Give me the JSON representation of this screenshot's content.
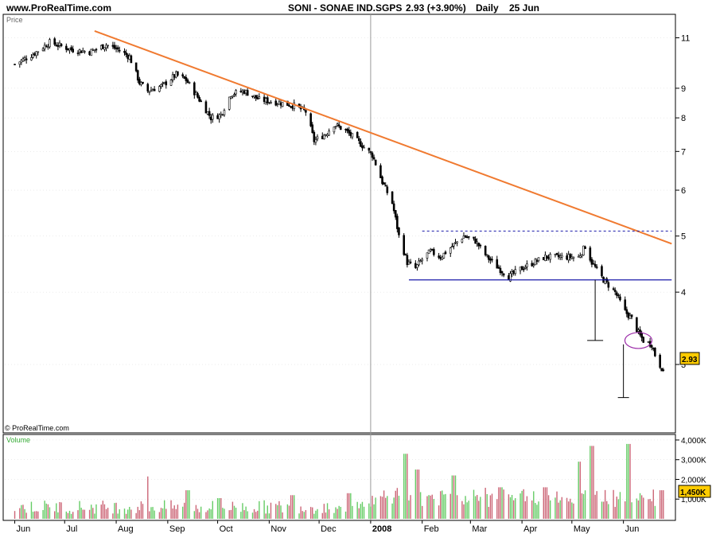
{
  "header": {
    "site": "www.ProRealTime.com",
    "symbol": "SONI - SONAE IND.SGPS",
    "quote": "2.93 (+3.90%)",
    "period": "Daily",
    "date": "25 Jun"
  },
  "price_panel": {
    "title": "Price",
    "copyright": "© ProRealTime.com",
    "last_tag": "2.93"
  },
  "volume_panel": {
    "title": "Volume",
    "last_tag": "1,450K"
  },
  "colors": {
    "candle": "#000000",
    "trendline": "#f07a30",
    "support": "#1a1aaa",
    "resistance": "#1a1aaa",
    "ellipse": "#9b2aa8",
    "vol_up": "#66cc66",
    "vol_down": "#cc6677",
    "tag_bg": "#ffcc00",
    "grid": "#d8d8d8",
    "year_divider": "#999999"
  },
  "chart_data": [
    {
      "type": "line",
      "subtype": "candlestick",
      "name_text": "SONI - SONAE IND.SGPS",
      "y_scale": "log",
      "ylim": [
        2.3,
        12.0
      ],
      "y_ticks": [
        11,
        9,
        8,
        7,
        6,
        5,
        4,
        3
      ],
      "y_tick_labels": [
        "11",
        "9",
        "8",
        "7",
        "6",
        "5",
        "4",
        "3"
      ],
      "x_ticks": [
        "Jun",
        "Jul",
        "Aug",
        "Sep",
        "Oct",
        "Nov",
        "Dec",
        "2008",
        "Feb",
        "Mar",
        "Apr",
        "May",
        "Jun"
      ],
      "last": 2.93,
      "close_path": [
        [
          "2007-06-01",
          9.9
        ],
        [
          "2007-06-12",
          10.3
        ],
        [
          "2007-06-22",
          10.8
        ],
        [
          "2007-07-05",
          10.5
        ],
        [
          "2007-07-16",
          10.4
        ],
        [
          "2007-07-26",
          10.7
        ],
        [
          "2007-08-02",
          10.5
        ],
        [
          "2007-08-09",
          10.2
        ],
        [
          "2007-08-15",
          9.2
        ],
        [
          "2007-08-20",
          8.9
        ],
        [
          "2007-08-29",
          9.1
        ],
        [
          "2007-09-06",
          9.5
        ],
        [
          "2007-09-12",
          9.3
        ],
        [
          "2007-09-20",
          8.6
        ],
        [
          "2007-09-27",
          8.0
        ],
        [
          "2007-10-03",
          8.1
        ],
        [
          "2007-10-09",
          8.8
        ],
        [
          "2007-10-17",
          8.9
        ],
        [
          "2007-10-26",
          8.6
        ],
        [
          "2007-11-07",
          8.5
        ],
        [
          "2007-11-16",
          8.4
        ],
        [
          "2007-11-23",
          8.2
        ],
        [
          "2007-11-28",
          7.3
        ],
        [
          "2007-12-05",
          7.5
        ],
        [
          "2007-12-10",
          7.8
        ],
        [
          "2007-12-17",
          7.6
        ],
        [
          "2007-12-24",
          7.3
        ],
        [
          "2008-01-02",
          6.9
        ],
        [
          "2008-01-08",
          6.2
        ],
        [
          "2008-01-14",
          5.7
        ],
        [
          "2008-01-18",
          5.0
        ],
        [
          "2008-01-23",
          4.5
        ],
        [
          "2008-01-28",
          4.4
        ],
        [
          "2008-02-02",
          4.6
        ],
        [
          "2008-02-06",
          4.7
        ],
        [
          "2008-02-12",
          4.6
        ],
        [
          "2008-02-19",
          4.8
        ],
        [
          "2008-02-26",
          5.0
        ],
        [
          "2008-03-04",
          4.9
        ],
        [
          "2008-03-11",
          4.6
        ],
        [
          "2008-03-18",
          4.4
        ],
        [
          "2008-03-24",
          4.25
        ],
        [
          "2008-04-01",
          4.4
        ],
        [
          "2008-04-08",
          4.5
        ],
        [
          "2008-04-15",
          4.6
        ],
        [
          "2008-04-22",
          4.6
        ],
        [
          "2008-04-29",
          4.6
        ],
        [
          "2008-05-05",
          4.6
        ],
        [
          "2008-05-09",
          4.8
        ],
        [
          "2008-05-13",
          4.5
        ],
        [
          "2008-05-20",
          4.2
        ],
        [
          "2008-05-27",
          4.0
        ],
        [
          "2008-06-02",
          3.7
        ],
        [
          "2008-06-06",
          3.6
        ],
        [
          "2008-06-10",
          3.4
        ],
        [
          "2008-06-13",
          3.3
        ],
        [
          "2008-06-18",
          3.25
        ],
        [
          "2008-06-21",
          3.05
        ],
        [
          "2008-06-25",
          2.93
        ]
      ],
      "annotations": {
        "downtrend": [
          [
            "2007-07-19",
            11.3
          ],
          [
            "2008-06-30",
            4.85
          ]
        ],
        "resistance": [
          [
            "2008-02-01",
            5.1
          ],
          [
            "2008-06-30",
            5.1
          ]
        ],
        "support": [
          [
            "2008-01-24",
            4.2
          ],
          [
            "2008-06-30",
            4.2
          ]
        ],
        "measured_move_1": [
          [
            "2008-05-15",
            4.2
          ],
          [
            "2008-05-15",
            3.3
          ]
        ],
        "measured_move_2": [
          [
            "2008-06-01",
            3.25
          ],
          [
            "2008-06-01",
            2.63
          ]
        ],
        "ellipse_center": [
          "2008-06-10",
          3.3
        ]
      }
    },
    {
      "type": "bar",
      "title_text": "Volume",
      "ylim": [
        0,
        4000
      ],
      "y_ticks": [
        1000,
        2000,
        3000,
        4000
      ],
      "y_tick_labels": [
        "1,000K",
        "2,000K",
        "3,000K",
        "4,000K"
      ],
      "last_value": 1450,
      "peaks": [
        [
          "2007-08-19",
          2150
        ],
        [
          "2007-09-13",
          1450
        ],
        [
          "2007-10-02",
          1050
        ],
        [
          "2007-11-15",
          1200
        ],
        [
          "2007-12-19",
          1300
        ],
        [
          "2008-01-22",
          3300
        ],
        [
          "2008-01-29",
          2500
        ],
        [
          "2008-02-20",
          2200
        ],
        [
          "2008-03-19",
          1600
        ],
        [
          "2008-04-15",
          1600
        ],
        [
          "2008-05-05",
          2900
        ],
        [
          "2008-05-13",
          3700
        ],
        [
          "2008-06-04",
          3800
        ],
        [
          "2008-06-24",
          1450
        ]
      ]
    }
  ]
}
